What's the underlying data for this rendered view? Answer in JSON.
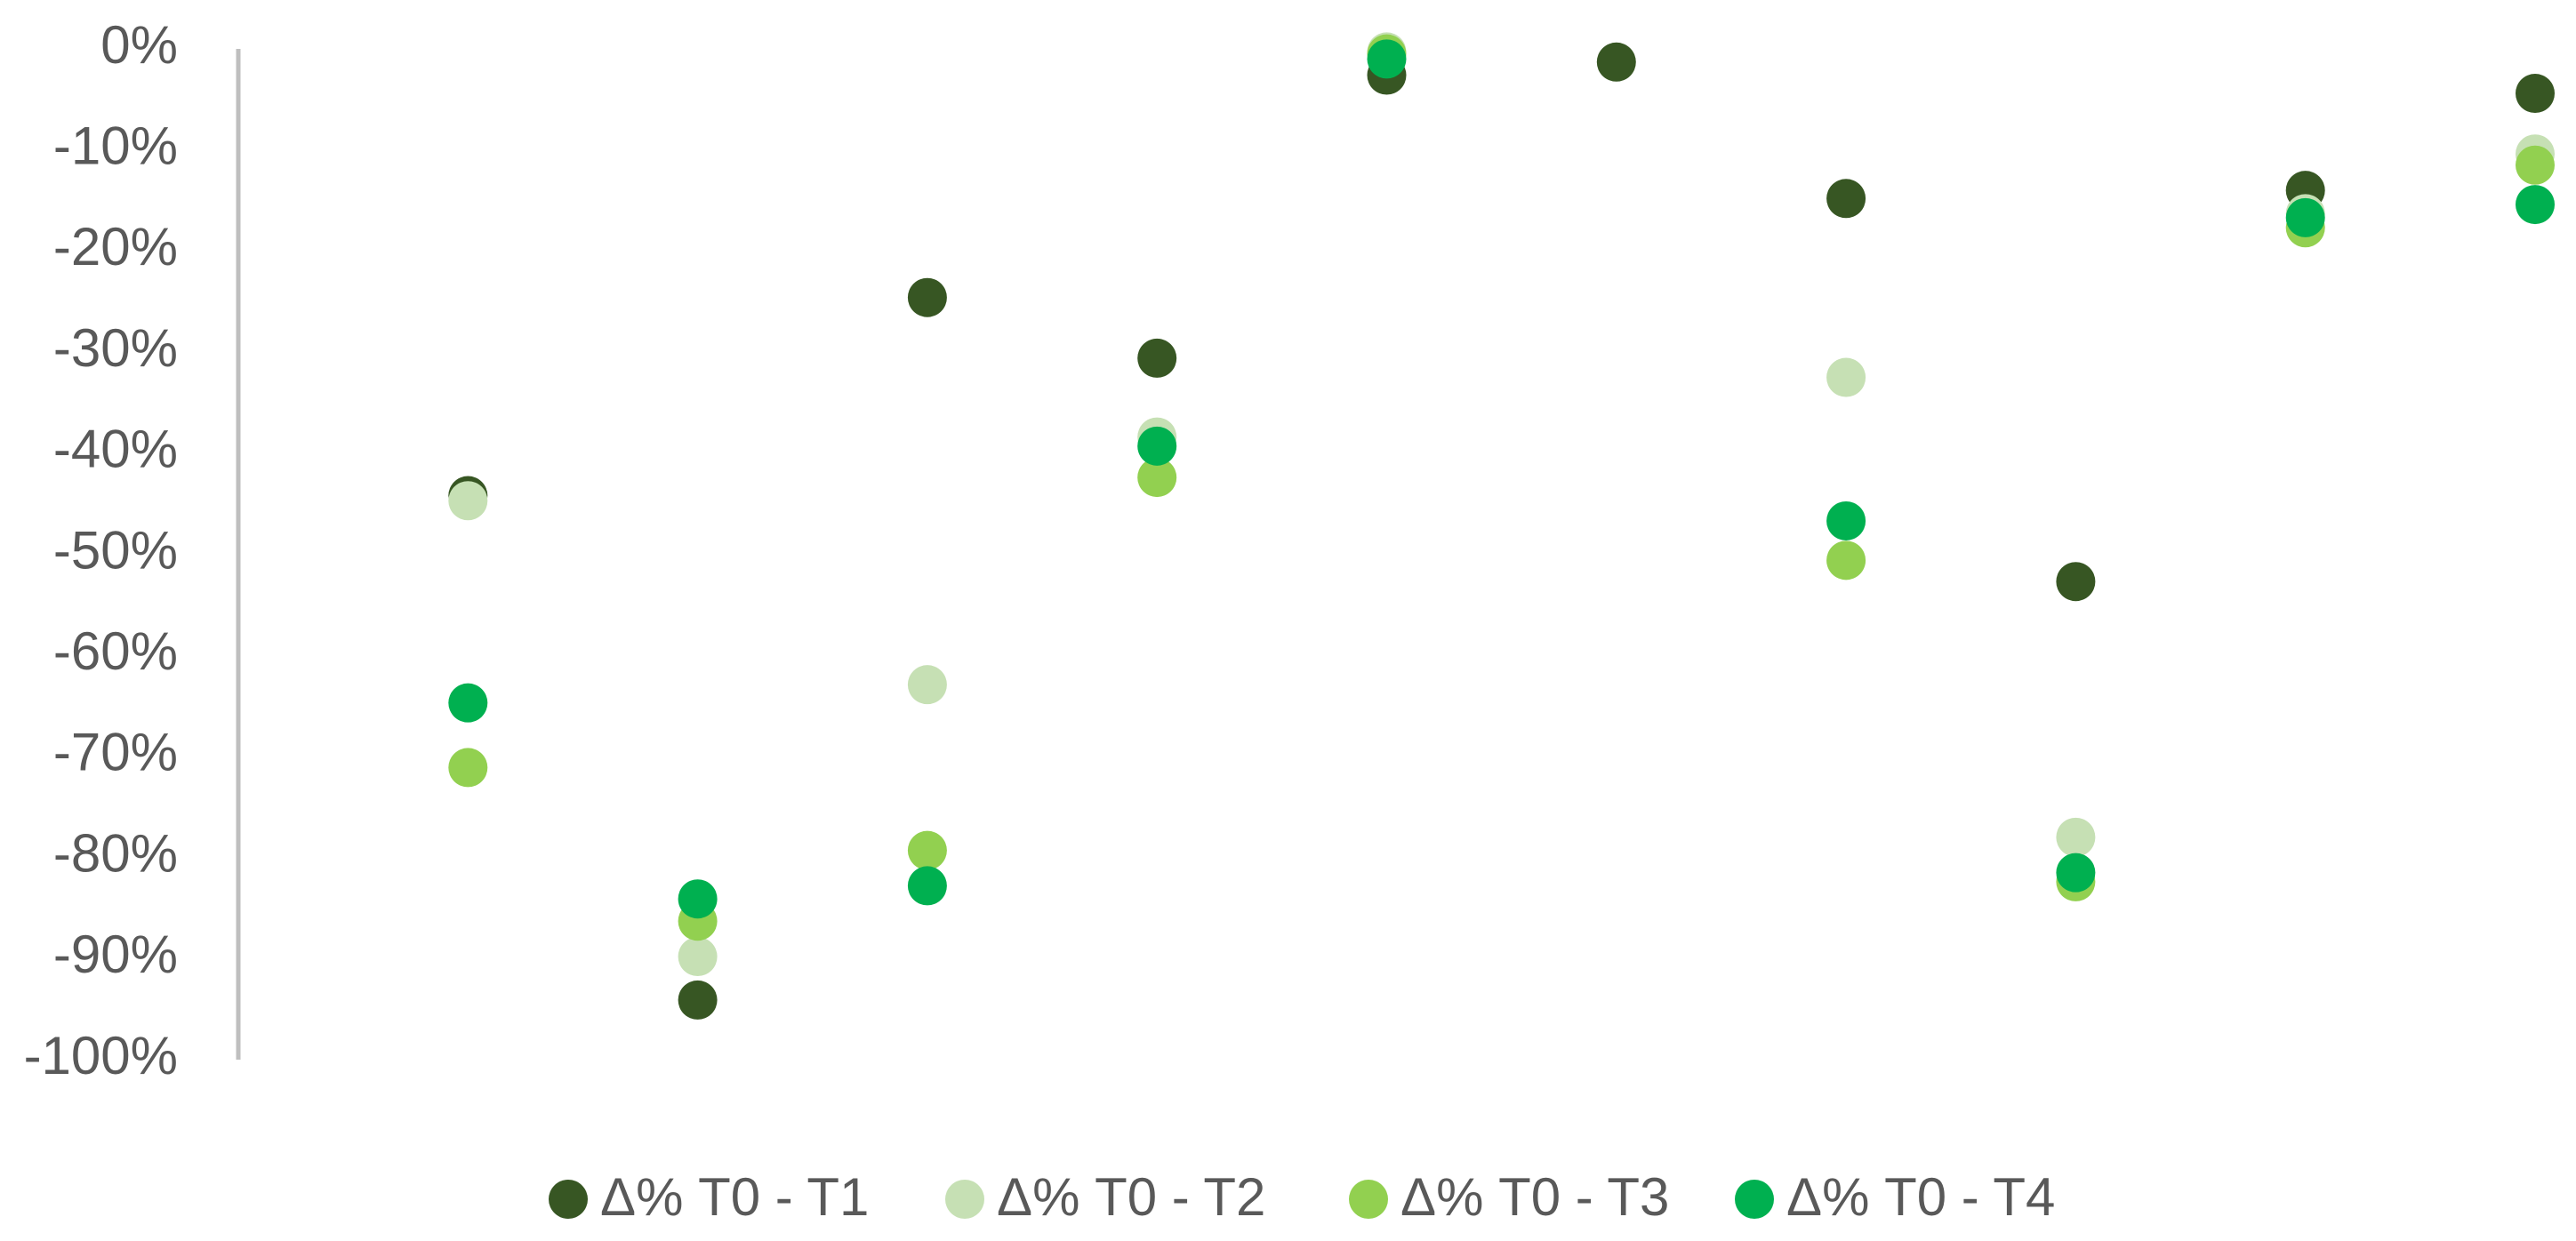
{
  "chart_data": {
    "type": "scatter",
    "categories": [
      null,
      null,
      null,
      null,
      null,
      null,
      null,
      null,
      null,
      null
    ],
    "series": [
      {
        "name": "Δ% T0 - T1",
        "color": "#375623",
        "values": [
          -44.2,
          -94.1,
          -24.6,
          -30.6,
          -2.6,
          -1.3,
          -14.8,
          -52.7,
          -14.0,
          -4.4
        ]
      },
      {
        "name": "Δ% T0 - T2",
        "color": "#c6e0b4",
        "values": [
          -44.7,
          -89.8,
          -62.9,
          -38.4,
          -0.3,
          null,
          -32.5,
          -78.0,
          -16.3,
          -10.4
        ]
      },
      {
        "name": "Δ% T0 - T3",
        "color": "#92d050",
        "values": [
          -71.1,
          -86.3,
          -79.3,
          -42.4,
          -0.5,
          null,
          -50.6,
          -82.4,
          -17.7,
          -11.5
        ]
      },
      {
        "name": "Δ% T0 - T4",
        "color": "#00b050",
        "values": [
          -64.7,
          -84.1,
          -82.8,
          -39.3,
          -1.0,
          null,
          -46.7,
          -81.5,
          -16.7,
          -15.4
        ]
      }
    ],
    "ylim": [
      -100,
      0
    ],
    "yticks": [
      {
        "value": 0,
        "label": "0%"
      },
      {
        "value": -10,
        "label": "-10%"
      },
      {
        "value": -20,
        "label": "-20%"
      },
      {
        "value": -30,
        "label": "-30%"
      },
      {
        "value": -40,
        "label": "-40%"
      },
      {
        "value": -50,
        "label": "-50%"
      },
      {
        "value": -60,
        "label": "-60%"
      },
      {
        "value": -70,
        "label": "-70%"
      },
      {
        "value": -80,
        "label": "-80%"
      },
      {
        "value": -90,
        "label": "-90%"
      },
      {
        "value": -100,
        "label": "-100%"
      }
    ],
    "grid": false,
    "legend": "bottom"
  }
}
